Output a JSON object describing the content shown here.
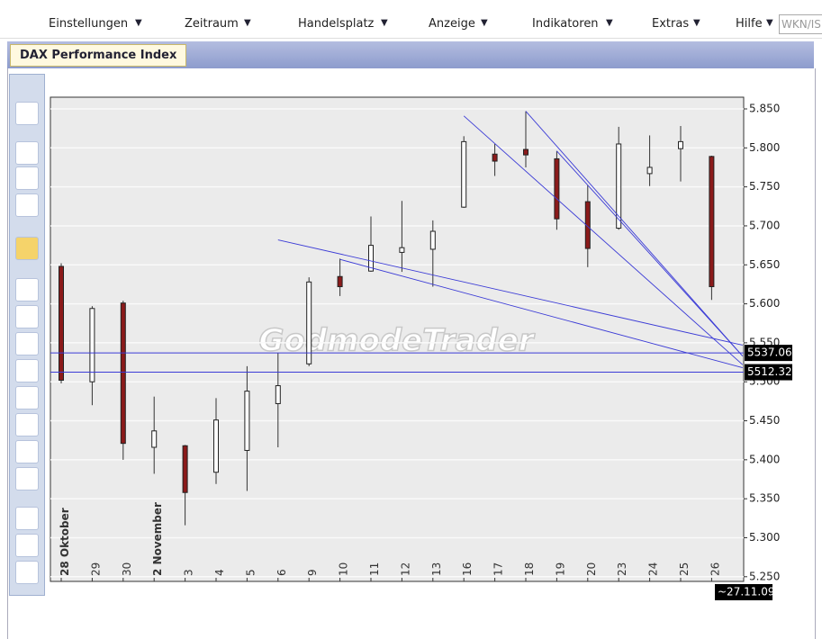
{
  "menu": [
    "Einstellungen",
    "Zeitraum",
    "Handelsplatz",
    "Anzeige",
    "Indikatoren",
    "Extras",
    "Hilfe"
  ],
  "search_placeholder": "WKN/IS",
  "tab": "DAX Performance Index",
  "chart_data": {
    "type": "candlestick",
    "watermark": "GodmodeTrader",
    "categories": [
      "28 Oktober",
      "29",
      "30",
      "2 November",
      "3",
      "4",
      "5",
      "6",
      "9",
      "10",
      "11",
      "12",
      "13",
      "16",
      "17",
      "18",
      "19",
      "20",
      "23",
      "24",
      "25",
      "26"
    ],
    "open": [
      5648,
      5500,
      5601,
      5416,
      5418,
      5384,
      5412,
      5472,
      5523,
      5635,
      5642,
      5666,
      5670,
      5724,
      5792,
      5798,
      5786,
      5731,
      5697,
      5767,
      5799,
      5789
    ],
    "high": [
      5652,
      5597,
      5604,
      5481,
      5419,
      5479,
      5520,
      5537,
      5634,
      5658,
      5712,
      5732,
      5707,
      5815,
      5805,
      5847,
      5796,
      5752,
      5827,
      5816,
      5828,
      5790
    ],
    "low": [
      5498,
      5470,
      5400,
      5382,
      5316,
      5369,
      5360,
      5416,
      5520,
      5610,
      5641,
      5641,
      5622,
      5723,
      5764,
      5775,
      5695,
      5647,
      5695,
      5751,
      5757,
      5605
    ],
    "close": [
      5502,
      5594,
      5421,
      5437,
      5358,
      5451,
      5488,
      5495,
      5628,
      5622,
      5675,
      5672,
      5693,
      5808,
      5783,
      5791,
      5709,
      5671,
      5805,
      5775,
      5808,
      5622
    ],
    "up_color": "#ffffff",
    "down_color": "#8b1a1a",
    "ylim": [
      5244,
      5865
    ],
    "yticks": [
      {
        "value": 5250,
        "label": "5.250"
      },
      {
        "value": 5300,
        "label": "5.300"
      },
      {
        "value": 5350,
        "label": "5.350"
      },
      {
        "value": 5400,
        "label": "5.400"
      },
      {
        "value": 5450,
        "label": "5.450"
      },
      {
        "value": 5500,
        "label": "5.500"
      },
      {
        "value": 5550,
        "label": "5.550"
      },
      {
        "value": 5600,
        "label": "5.600"
      },
      {
        "value": 5650,
        "label": "5.650"
      },
      {
        "value": 5700,
        "label": "5.700"
      },
      {
        "value": 5750,
        "label": "5.750"
      },
      {
        "value": 5800,
        "label": "5.800"
      },
      {
        "value": 5850,
        "label": "5.850"
      }
    ],
    "grid": true,
    "hlines": [
      5537.06,
      5512.32
    ],
    "trendlines": [
      {
        "x": [
          7,
          22
        ],
        "values": [
          5682,
          5547
        ]
      },
      {
        "x": [
          9,
          22
        ],
        "values": [
          5657,
          5518
        ]
      },
      {
        "x": [
          13,
          22
        ],
        "values": [
          5841,
          5522
        ]
      },
      {
        "x": [
          15,
          22
        ],
        "values": [
          5847,
          5533
        ]
      },
      {
        "x": [
          16,
          22
        ],
        "values": [
          5796,
          5533
        ]
      }
    ],
    "line_color": "#3b3bd6",
    "date_label": "~27.11.09"
  }
}
